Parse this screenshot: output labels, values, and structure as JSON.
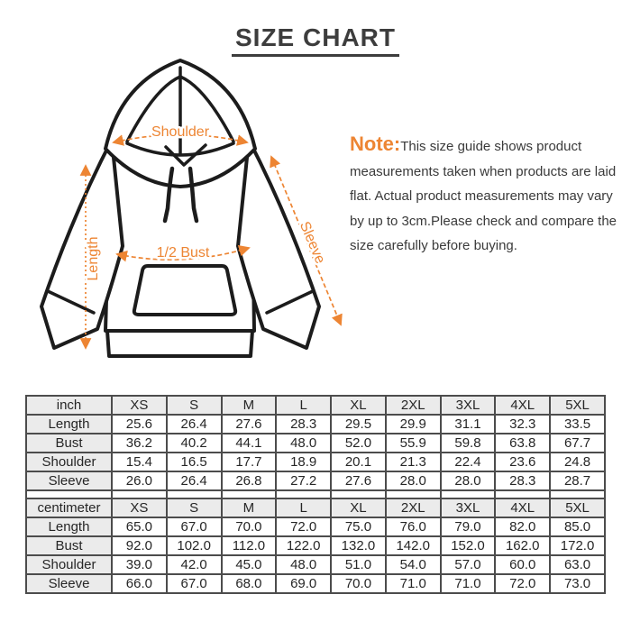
{
  "title": "SIZE CHART",
  "note": {
    "label": "Note:",
    "text": "This size guide shows product measurements taken when products are laid flat. Actual product measurements may vary by up to 3cm.Please check and compare the size carefully before buying."
  },
  "diagram": {
    "subject": "hoodie-flat-sketch",
    "accent_color": "#ED8533",
    "outline_color": "#1c1c1c",
    "labels": {
      "shoulder": "Shoulder",
      "length": "Length",
      "half_bust": "1/2 Bust",
      "sleeve": "Sleeve"
    }
  },
  "chart_data": [
    {
      "type": "table",
      "unit": "inch",
      "columns": [
        "XS",
        "S",
        "M",
        "L",
        "XL",
        "2XL",
        "3XL",
        "4XL",
        "5XL"
      ],
      "rows": [
        {
          "label": "Length",
          "values": [
            "25.6",
            "26.4",
            "27.6",
            "28.3",
            "29.5",
            "29.9",
            "31.1",
            "32.3",
            "33.5"
          ]
        },
        {
          "label": "Bust",
          "values": [
            "36.2",
            "40.2",
            "44.1",
            "48.0",
            "52.0",
            "55.9",
            "59.8",
            "63.8",
            "67.7"
          ]
        },
        {
          "label": "Shoulder",
          "values": [
            "15.4",
            "16.5",
            "17.7",
            "18.9",
            "20.1",
            "21.3",
            "22.4",
            "23.6",
            "24.8"
          ]
        },
        {
          "label": "Sleeve",
          "values": [
            "26.0",
            "26.4",
            "26.8",
            "27.2",
            "27.6",
            "28.0",
            "28.0",
            "28.3",
            "28.7"
          ]
        }
      ]
    },
    {
      "type": "table",
      "unit": "centimeter",
      "columns": [
        "XS",
        "S",
        "M",
        "L",
        "XL",
        "2XL",
        "3XL",
        "4XL",
        "5XL"
      ],
      "rows": [
        {
          "label": "Length",
          "values": [
            "65.0",
            "67.0",
            "70.0",
            "72.0",
            "75.0",
            "76.0",
            "79.0",
            "82.0",
            "85.0"
          ]
        },
        {
          "label": "Bust",
          "values": [
            "92.0",
            "102.0",
            "112.0",
            "122.0",
            "132.0",
            "142.0",
            "152.0",
            "162.0",
            "172.0"
          ]
        },
        {
          "label": "Shoulder",
          "values": [
            "39.0",
            "42.0",
            "45.0",
            "48.0",
            "51.0",
            "54.0",
            "57.0",
            "60.0",
            "63.0"
          ]
        },
        {
          "label": "Sleeve",
          "values": [
            "66.0",
            "67.0",
            "68.0",
            "69.0",
            "70.0",
            "71.0",
            "71.0",
            "72.0",
            "73.0"
          ]
        }
      ]
    }
  ]
}
